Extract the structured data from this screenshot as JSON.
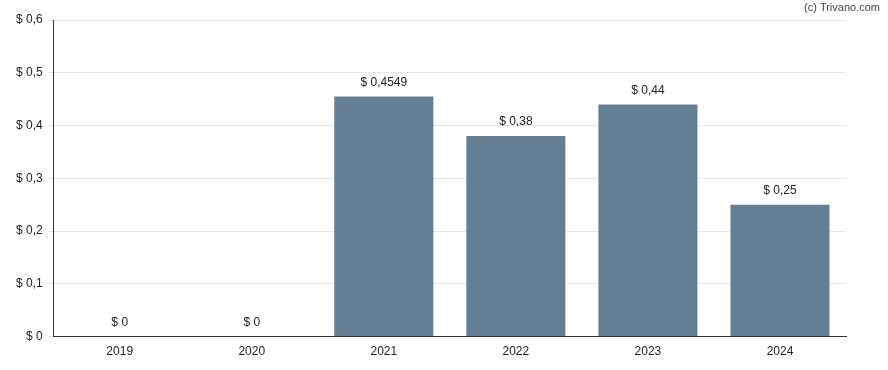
{
  "chart_data": {
    "type": "bar",
    "annotations": [
      "(c) Trivano.com"
    ],
    "categories": [
      "2019",
      "2020",
      "2021",
      "2022",
      "2023",
      "2024"
    ],
    "values": [
      0,
      0,
      0.4549,
      0.38,
      0.44,
      0.25
    ],
    "value_labels": [
      "$ 0",
      "$ 0",
      "$ 0,4549",
      "$ 0,38",
      "$ 0,44",
      "$ 0,25"
    ],
    "data_labels": true,
    "color": "#647f94",
    "ylim": [
      0,
      0.6
    ],
    "yticks": [
      {
        "value": 0,
        "label": "$ 0"
      },
      {
        "value": 0.1,
        "label": "$ 0,1"
      },
      {
        "value": 0.2,
        "label": "$ 0,2"
      },
      {
        "value": 0.3,
        "label": "$ 0,3"
      },
      {
        "value": 0.4,
        "label": "$ 0,4"
      },
      {
        "value": 0.5,
        "label": "$ 0,5"
      },
      {
        "value": 0.6,
        "label": "$ 0,6"
      }
    ],
    "grid": true
  }
}
